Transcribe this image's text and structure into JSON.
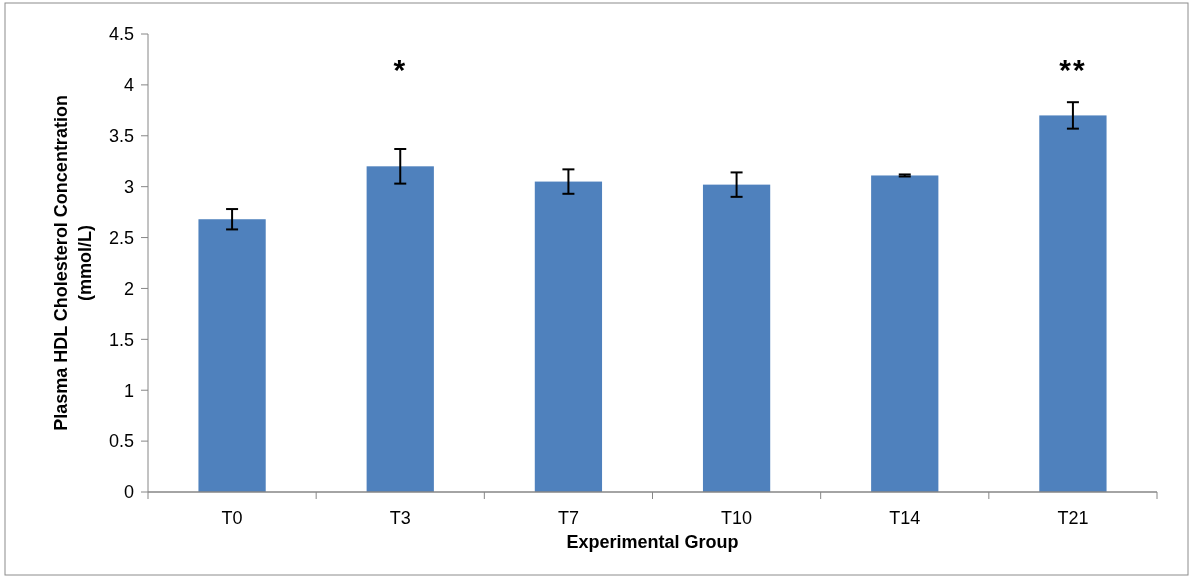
{
  "chart_data": {
    "type": "bar",
    "xlabel": "Experimental Group",
    "ylabel": "Plasma HDL Cholesterol Concentration (mmol/L)",
    "categories": [
      "T0",
      "T3",
      "T7",
      "T10",
      "T14",
      "T21"
    ],
    "values": [
      2.68,
      3.2,
      3.05,
      3.02,
      3.11,
      3.7
    ],
    "errors": [
      0.1,
      0.17,
      0.12,
      0.12,
      0.01,
      0.13
    ],
    "color": "#4f81bd",
    "ylim": [
      0,
      4.5
    ],
    "yticks": [
      0,
      0.5,
      1,
      1.5,
      2,
      2.5,
      3,
      3.5,
      4,
      4.5
    ],
    "annotations": [
      "*",
      "**"
    ]
  }
}
